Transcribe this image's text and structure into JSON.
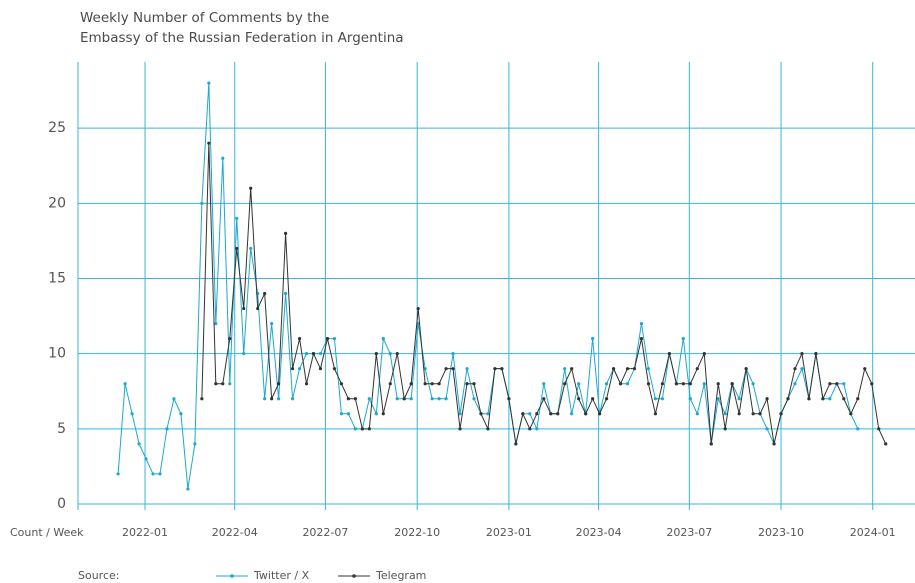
{
  "chart_data": {
    "type": "line",
    "title": [
      "Weekly Number of Comments by the",
      "Embassy of the Russian Federation in Argentina"
    ],
    "x_label": "Count / Week",
    "source": "Source:",
    "x": [
      0,
      1,
      2,
      3,
      4,
      5,
      6,
      7,
      8,
      9,
      10,
      11,
      12,
      13,
      14,
      15,
      16,
      17,
      18,
      19,
      20,
      21,
      22,
      23,
      24,
      25,
      26,
      27,
      28,
      29,
      30,
      31,
      32,
      33,
      34,
      35,
      36,
      37,
      38,
      39,
      40,
      41,
      42,
      43,
      44,
      45,
      46,
      47,
      48,
      49,
      50,
      51,
      52,
      53,
      54,
      55,
      56,
      57,
      58,
      59,
      60,
      61,
      62,
      63,
      64,
      65,
      66,
      67,
      68,
      69,
      70,
      71,
      72,
      73,
      74,
      75,
      76,
      77,
      78,
      79,
      80,
      81,
      82,
      83,
      84,
      85,
      86,
      87,
      88,
      89,
      90,
      91,
      92,
      93,
      94,
      95,
      96,
      97,
      98,
      99,
      100,
      101,
      102,
      103,
      104,
      105,
      106,
      107,
      108,
      109,
      110
    ],
    "series": [
      {
        "name": "Twitter / X",
        "color": "#1ba9cf",
        "values": [
          2,
          8,
          6,
          4,
          3,
          2,
          2,
          5,
          7,
          6,
          1,
          4,
          20,
          28,
          12,
          23,
          8,
          19,
          10,
          17,
          14,
          7,
          12,
          7,
          14,
          7,
          9,
          10,
          10,
          10,
          11,
          11,
          6,
          6,
          5,
          5,
          7,
          6,
          11,
          10,
          7,
          7,
          7,
          12,
          9,
          7,
          7,
          7,
          10,
          6,
          9,
          7,
          6,
          6,
          9,
          9,
          7,
          4,
          6,
          6,
          5,
          8,
          6,
          6,
          9,
          6,
          8,
          6,
          11,
          6,
          8,
          9,
          8,
          8,
          9,
          12,
          9,
          7,
          7,
          10,
          8,
          11,
          7,
          6,
          8,
          4,
          7,
          6,
          8,
          7,
          9,
          8,
          6,
          5,
          4,
          6,
          7,
          8,
          9,
          7,
          10,
          7,
          7,
          8,
          8,
          6,
          5,
          null,
          null,
          null,
          null
        ]
      },
      {
        "name": "Telegram",
        "color": "#333333",
        "values": [
          null,
          null,
          null,
          null,
          null,
          null,
          null,
          null,
          null,
          null,
          null,
          null,
          7,
          24,
          8,
          8,
          11,
          17,
          13,
          21,
          13,
          14,
          7,
          8,
          18,
          9,
          11,
          8,
          10,
          9,
          11,
          9,
          8,
          7,
          7,
          5,
          5,
          10,
          6,
          8,
          10,
          7,
          8,
          13,
          8,
          8,
          8,
          9,
          9,
          5,
          8,
          8,
          6,
          5,
          9,
          9,
          7,
          4,
          6,
          5,
          6,
          7,
          6,
          6,
          8,
          9,
          7,
          6,
          7,
          6,
          7,
          9,
          8,
          9,
          9,
          11,
          8,
          6,
          8,
          10,
          8,
          8,
          8,
          9,
          10,
          4,
          8,
          5,
          8,
          6,
          9,
          6,
          6,
          7,
          4,
          6,
          7,
          9,
          10,
          7,
          10,
          7,
          8,
          8,
          7,
          6,
          7,
          9,
          8,
          5,
          4
        ]
      }
    ],
    "xlim": [
      -5.75,
      114.2
    ],
    "xticks": [
      {
        "value": 3.857,
        "label": "2022-01"
      },
      {
        "value": 16.71,
        "label": "2022-04"
      },
      {
        "value": 29.71,
        "label": "2022-07"
      },
      {
        "value": 42.86,
        "label": "2022-10"
      },
      {
        "value": 56.0,
        "label": "2023-01"
      },
      {
        "value": 68.86,
        "label": "2023-04"
      },
      {
        "value": 81.86,
        "label": "2023-07"
      },
      {
        "value": 95.0,
        "label": "2023-10"
      },
      {
        "value": 108.14,
        "label": "2024-01"
      }
    ],
    "ylim": [
      -0.4,
      29.4
    ],
    "yticks": [
      0,
      5,
      10,
      15,
      20,
      25
    ],
    "grid": true
  }
}
